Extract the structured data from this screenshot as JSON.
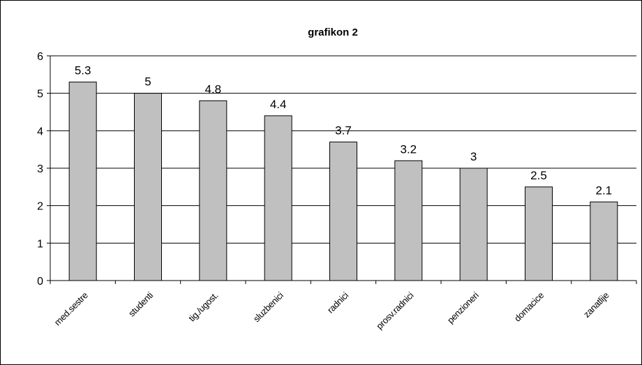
{
  "chart_data": {
    "type": "bar",
    "title": "grafikon 2",
    "xlabel": "",
    "ylabel": "",
    "categories": [
      "med.sestre",
      "studenti",
      "tig./ugost.",
      "sluzbenici",
      "radnici",
      "prosv.radnici",
      "penzioneri",
      "domacice",
      "zanatlije"
    ],
    "values": [
      5.3,
      5,
      4.8,
      4.4,
      3.7,
      3.2,
      3,
      2.5,
      2.1
    ],
    "data_labels": [
      "5.3",
      "5",
      "4.8",
      "4.4",
      "3.7",
      "3.2",
      "3",
      "2.5",
      "2.1"
    ],
    "yticks": [
      "0",
      "1",
      "2",
      "3",
      "4",
      "5",
      "6"
    ],
    "ylim": [
      0,
      6
    ],
    "grid": true,
    "legend": "none",
    "colors": {
      "bar_fill": "#c0c0c0",
      "bar_stroke": "#000000",
      "grid": "#000000",
      "background": "#ffffff"
    }
  }
}
